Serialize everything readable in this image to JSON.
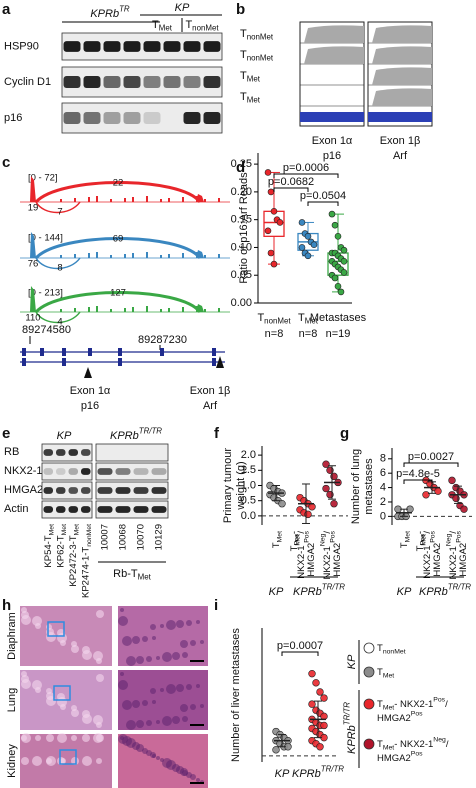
{
  "panel_labels": [
    "a",
    "b",
    "c",
    "d",
    "e",
    "f",
    "g",
    "h",
    "i"
  ],
  "panel_a": {
    "group_kprb": [
      {
        "t": "KPRb"
      },
      {
        "sup": "TR"
      }
    ],
    "group_kp": "KP",
    "tumours": [
      [
        {
          "t": "T"
        },
        {
          "sub": "Met"
        }
      ],
      [
        {
          "t": "T"
        },
        {
          "sub": "nonMet"
        }
      ]
    ],
    "rows": [
      "HSP90",
      "Cyclin D1",
      "p16"
    ]
  },
  "panel_b": {
    "tracks": [
      [
        {
          "t": "T"
        },
        {
          "sub": "nonMet"
        }
      ],
      [
        {
          "t": "T"
        },
        {
          "sub": "nonMet"
        }
      ],
      [
        {
          "t": "T"
        },
        {
          "sub": "Met"
        }
      ],
      [
        {
          "t": "T"
        },
        {
          "sub": "Met"
        }
      ]
    ],
    "exons": [
      {
        "name": "Exon 1α",
        "gene": "p16"
      },
      {
        "name": "Exon 1β",
        "gene": "Arf"
      }
    ]
  },
  "panel_c": {
    "ranges": [
      "[0 - 72]",
      "[0 - 144]",
      "[0 - 213]"
    ],
    "junctions": [
      [
        "19",
        "22",
        "7"
      ],
      [
        "76",
        "69",
        "8"
      ],
      [
        "110",
        "127",
        "4"
      ]
    ],
    "coordinates": [
      "89274580",
      "89287230"
    ],
    "exons": [
      {
        "name": "Exon 1α",
        "gene": "p16"
      },
      {
        "name": "Exon 1β",
        "gene": "Arf"
      }
    ]
  },
  "panel_e": {
    "kp": "KP",
    "kprb": [
      {
        "t": "KPRb"
      },
      {
        "sup": "TR/TR"
      }
    ],
    "rows": [
      "RB",
      "NKX2-1",
      "HMGA2",
      "Actin"
    ],
    "kp_lanes": [
      [
        {
          "t": "KP54-T"
        },
        {
          "sub": "Met"
        }
      ],
      [
        {
          "t": "KP62-T"
        },
        {
          "sub": "Met"
        }
      ],
      [
        {
          "t": "KP2472-3-T"
        },
        {
          "sub": "Met"
        }
      ],
      [
        {
          "t": "KP2474-1-T"
        },
        {
          "sub": "nonMet"
        }
      ]
    ],
    "rb_lanes": [
      "10007",
      "10068",
      "10070",
      "10129"
    ],
    "rb_group": [
      {
        "t": "Rb-T"
      },
      {
        "sub": "Met"
      }
    ]
  },
  "panel_h": {
    "tissues": [
      "Diaphram",
      "Lung",
      "Kidney"
    ]
  },
  "legend": {
    "genotypes": [
      "KP",
      [
        {
          "t": "KPRb"
        },
        {
          "sup": "TR/TR"
        }
      ]
    ],
    "entries": [
      {
        "color": "#ffffff",
        "lines": [
          [
            {
              "t": "T"
            },
            {
              "sub": "nonMet"
            }
          ]
        ]
      },
      {
        "color": "#8c8c8c",
        "lines": [
          [
            {
              "t": "T"
            },
            {
              "sub": "Met"
            }
          ]
        ]
      },
      {
        "color": "#e8262b",
        "lines": [
          [
            {
              "t": "T"
            },
            {
              "sub": "Met"
            },
            {
              "t": "- NKX2-1"
            },
            {
              "sup": "Pos"
            },
            {
              "t": "/"
            }
          ],
          [
            {
              "t": "HMGA2"
            },
            {
              "sup": "Pos"
            }
          ]
        ]
      },
      {
        "color": "#b0132a",
        "lines": [
          [
            {
              "t": "T"
            },
            {
              "sub": "Met"
            },
            {
              "t": "- NKX2-1"
            },
            {
              "sup": "Neg"
            },
            {
              "t": "/"
            }
          ],
          [
            {
              "t": "HMGA2"
            },
            {
              "sup": "Pos"
            }
          ]
        ]
      }
    ]
  },
  "chart_data": [
    {
      "type": "box",
      "ylabel": [
        "Ratio of p16:Arf Reads"
      ],
      "ylim": [
        0,
        0.27
      ],
      "yticks": [
        {
          "value": 0,
          "label": "0.00"
        },
        {
          "value": 0.05,
          "label": "0.05"
        },
        {
          "value": 0.1,
          "label": "0.10"
        },
        {
          "value": 0.15,
          "label": "0.15"
        },
        {
          "value": 0.2,
          "label": "0.20"
        },
        {
          "value": 0.25,
          "label": "0.25"
        }
      ],
      "groups": [
        {
          "name": [
            [
              {
                "t": "T"
              },
              {
                "sub": "nonMet"
              }
            ]
          ],
          "n": "n=8",
          "color": "#e8262b",
          "whisker_low": 0.07,
          "q1": 0.12,
          "median": 0.145,
          "q3": 0.165,
          "whisker_high": 0.235,
          "points": [
            0.235,
            0.2,
            0.165,
            0.15,
            0.145,
            0.13,
            0.09,
            0.07
          ]
        },
        {
          "name": [
            [
              {
                "t": "T"
              },
              {
                "sub": "Met"
              }
            ]
          ],
          "n": "n=8",
          "color": "#3a87c0",
          "whisker_low": 0.085,
          "q1": 0.095,
          "median": 0.11,
          "q3": 0.125,
          "whisker_high": 0.145,
          "points": [
            0.145,
            0.125,
            0.12,
            0.11,
            0.105,
            0.1,
            0.09,
            0.085
          ]
        },
        {
          "name": [
            "Metastases"
          ],
          "n": "n=19",
          "color": "#3aa845",
          "whisker_low": 0.02,
          "q1": 0.05,
          "median": 0.075,
          "q3": 0.09,
          "whisker_high": 0.16,
          "points": [
            0.16,
            0.14,
            0.12,
            0.1,
            0.095,
            0.09,
            0.09,
            0.085,
            0.08,
            0.075,
            0.075,
            0.07,
            0.065,
            0.06,
            0.055,
            0.05,
            0.045,
            0.03,
            0.02
          ]
        }
      ],
      "comparisons": [
        "p=0.0006",
        "p=0.0682",
        "p=0.0504"
      ]
    },
    {
      "type": "dot",
      "ylabel": [
        "Primary tumour",
        "weight (g)"
      ],
      "ylim": [
        -0.3,
        2.3
      ],
      "yticks": [
        {
          "value": 0,
          "label": "0.0"
        },
        {
          "value": 0.5,
          "label": "0.5"
        },
        {
          "value": 1,
          "label": "1.0"
        },
        {
          "value": 1.5,
          "label": "1.5"
        },
        {
          "value": 2,
          "label": "2.0"
        }
      ],
      "groups": [
        {
          "name": [
            [
              {
                "t": "T"
              },
              {
                "sub": "Met"
              }
            ]
          ],
          "color": "#8c8c8c",
          "mean": 0.75,
          "sd": 0.25,
          "points": [
            1.0,
            0.9,
            0.8,
            0.75,
            0.7,
            0.6,
            0.5,
            0.4
          ]
        },
        {
          "name": [
            [
              {
                "t": "NKX2-1"
              },
              {
                "sup": "Pos"
              },
              {
                "t": "/"
              }
            ],
            [
              {
                "t": "HMGA2"
              },
              {
                "sup": "Pos"
              }
            ]
          ],
          "color": "#e8262b",
          "mean": 0.4,
          "sd": 0.65,
          "points": [
            0.6,
            0.5,
            0.4,
            0.3,
            0.2,
            0.1,
            0.05
          ]
        },
        {
          "name": [
            [
              {
                "t": "NKX2-1"
              },
              {
                "sup": "Neg"
              },
              {
                "t": "/"
              }
            ],
            [
              {
                "t": "HMGA2"
              },
              {
                "sup": "Pos"
              }
            ]
          ],
          "color": "#b0132a",
          "mean": 1.1,
          "sd": 0.55,
          "points": [
            1.7,
            1.5,
            1.3,
            1.1,
            0.9,
            0.7,
            0.4
          ]
        }
      ],
      "tumour_label": [
        {
          "t": "T"
        },
        {
          "sub": "Met"
        },
        {
          "t": "-"
        }
      ],
      "genotypes": [
        "KP",
        [
          {
            "t": "KPRb"
          },
          {
            "sup": "TR/TR"
          }
        ]
      ]
    },
    {
      "type": "dot",
      "ylabel": [
        "Number of lung",
        "metastases"
      ],
      "ylim": [
        -1.2,
        9.5
      ],
      "yticks": [
        0,
        2,
        4,
        6,
        8
      ],
      "groups": [
        {
          "name": [
            [
              {
                "t": "T"
              },
              {
                "sub": "Met"
              }
            ]
          ],
          "color": "#8c8c8c",
          "mean": 0.5,
          "sd": 0.5,
          "points": [
            0,
            0,
            0,
            1,
            1
          ]
        },
        {
          "name": [
            [
              {
                "t": "NKX2-1"
              },
              {
                "sup": "Pos"
              },
              {
                "t": "/"
              }
            ],
            [
              {
                "t": "HMGA2"
              },
              {
                "sup": "Pos"
              }
            ]
          ],
          "color": "#e8262b",
          "mean": 4,
          "sd": 0.8,
          "points": [
            5,
            4.5,
            4,
            3.5,
            3
          ]
        },
        {
          "name": [
            [
              {
                "t": "NKX2-1"
              },
              {
                "sup": "Neg"
              },
              {
                "t": "/"
              }
            ],
            [
              {
                "t": "HMGA2"
              },
              {
                "sup": "Pos"
              }
            ]
          ],
          "color": "#b0132a",
          "mean": 3,
          "sd": 1.2,
          "points": [
            5,
            4,
            3.5,
            3,
            3,
            2.5,
            1.5,
            1
          ]
        }
      ],
      "comparisons": [
        "p=4.8e-5",
        "p=0.0027"
      ],
      "tumour_label": [
        {
          "t": "T"
        },
        {
          "sub": "Met"
        },
        {
          "t": "-"
        }
      ],
      "genotypes": [
        "KP",
        [
          {
            "t": "KPRb"
          },
          {
            "sup": "TR/TR"
          }
        ]
      ]
    },
    {
      "type": "dot",
      "ylabel": [
        "Number of liver metastases"
      ],
      "ylim": [
        -2,
        42
      ],
      "groups": [
        {
          "name": [
            "KP"
          ],
          "color": "#8c8c8c",
          "mean": 5,
          "sd": 2,
          "points": [
            8,
            7,
            6,
            5,
            5,
            4,
            3,
            3,
            2
          ]
        },
        {
          "name": [
            [
              {
                "t": "KPRb"
              },
              {
                "sup": "TR/TR"
              }
            ]
          ],
          "color": "#e8262b",
          "mean": 12,
          "sd": 6,
          "points": [
            27,
            24,
            21,
            19,
            17,
            15,
            14,
            13,
            12,
            11,
            10,
            10,
            9,
            8,
            7,
            6,
            5,
            4,
            3
          ]
        }
      ],
      "comparisons": [
        "p=0.0007"
      ]
    }
  ]
}
